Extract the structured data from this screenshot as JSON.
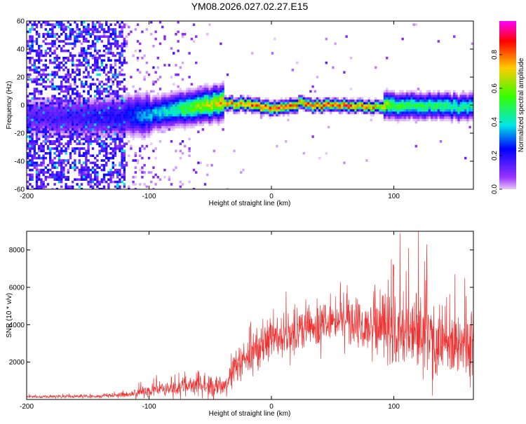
{
  "title": "YM08.2026.027.02.27.E15",
  "chart_data": [
    {
      "type": "heatmap",
      "title": "YM08.2026.027.02.27.E15",
      "xlabel": "Height of straight line (km)",
      "ylabel": "Frequency (Hz)",
      "xlim": [
        -200,
        165
      ],
      "ylim": [
        -60,
        60
      ],
      "xticks": [
        "-200",
        "-100",
        "0",
        "100"
      ],
      "xtick_values": [
        -200,
        -100,
        0,
        100
      ],
      "yticks": [
        "-60",
        "-40",
        "-20",
        "0",
        "20",
        "40",
        "60"
      ],
      "ytick_values": [
        -60,
        -40,
        -20,
        0,
        20,
        40,
        60
      ],
      "colorbar": {
        "label": "Normalized spectral amplitude",
        "range": [
          0,
          1
        ],
        "ticks": [
          "0.0",
          "0.2",
          "0.4",
          "0.6",
          "0.8"
        ],
        "tick_values": [
          0.0,
          0.2,
          0.4,
          0.6,
          0.8
        ],
        "colormap": [
          "#e8c8f8",
          "#9933ff",
          "#0000ff",
          "#00e6e6",
          "#33ff00",
          "#ffcc00",
          "#ff0000",
          "#ff00ff"
        ]
      },
      "ridge_track": {
        "description": "Dominant frequency ridge vs height",
        "x": [
          -200,
          -150,
          -120,
          -110,
          -100,
          -90,
          -80,
          -70,
          -60,
          -50,
          -40,
          -30,
          -20,
          -10,
          0,
          10,
          20,
          22,
          30,
          40,
          60,
          80,
          100,
          120,
          140,
          160,
          165
        ],
        "freq": [
          -8,
          -8,
          -8,
          -7,
          -6,
          -5,
          -3,
          -2,
          0,
          1,
          2,
          1,
          1,
          -1,
          -2,
          -1,
          1,
          3,
          0,
          0,
          0,
          -1,
          0,
          0,
          0,
          -1,
          -1
        ],
        "peak_amplitude": [
          0.15,
          0.2,
          0.25,
          0.35,
          0.4,
          0.45,
          0.5,
          0.6,
          0.7,
          0.75,
          0.85,
          0.9,
          0.9,
          0.95,
          0.95,
          0.95,
          0.9,
          0.85,
          0.95,
          0.95,
          0.95,
          0.9,
          0.6,
          0.55,
          0.55,
          0.5,
          0.5
        ]
      }
    },
    {
      "type": "line",
      "xlabel": "Height of straight line (km)",
      "ylabel": "SNR (10 * v/v)",
      "xlim": [
        -200,
        165
      ],
      "ylim": [
        0,
        9000
      ],
      "xticks": [
        "-200",
        "-100",
        "0",
        "100"
      ],
      "xtick_values": [
        -200,
        -100,
        0,
        100
      ],
      "yticks": [
        "2000",
        "4000",
        "6000",
        "8000"
      ],
      "ytick_values": [
        2000,
        4000,
        6000,
        8000
      ],
      "series": [
        {
          "name": "SNR",
          "color": "#ee3333",
          "envelope_x": [
            -200,
            -180,
            -160,
            -140,
            -120,
            -110,
            -100,
            -90,
            -80,
            -70,
            -60,
            -50,
            -40,
            -35,
            -30,
            -20,
            -10,
            0,
            10,
            20,
            30,
            40,
            50,
            60,
            70,
            80,
            90,
            100,
            110,
            120,
            130,
            140,
            150,
            160,
            165
          ],
          "envelope_mean": [
            150,
            150,
            160,
            180,
            250,
            350,
            450,
            550,
            650,
            750,
            800,
            700,
            600,
            900,
            1800,
            2200,
            2700,
            3200,
            3500,
            3700,
            3900,
            4000,
            4200,
            4300,
            4300,
            4100,
            3900,
            3700,
            3600,
            3500,
            3400,
            3200,
            3000,
            3000,
            3000
          ],
          "envelope_spread": [
            60,
            60,
            70,
            80,
            120,
            200,
            250,
            300,
            350,
            400,
            450,
            400,
            350,
            500,
            700,
            800,
            900,
            900,
            900,
            900,
            900,
            900,
            900,
            900,
            900,
            1000,
            1200,
            1400,
            1600,
            1800,
            1700,
            1500,
            1300,
            1200,
            1200
          ],
          "peaks": [
            {
              "x": 98,
              "y": 7500
            },
            {
              "x": 100,
              "y": 7200
            },
            {
              "x": 105,
              "y": 8900
            },
            {
              "x": 112,
              "y": 8100
            },
            {
              "x": 120,
              "y": 9000
            },
            {
              "x": 125,
              "y": 7400
            },
            {
              "x": 150,
              "y": 6700
            },
            {
              "x": 158,
              "y": 6500
            }
          ]
        }
      ]
    }
  ]
}
